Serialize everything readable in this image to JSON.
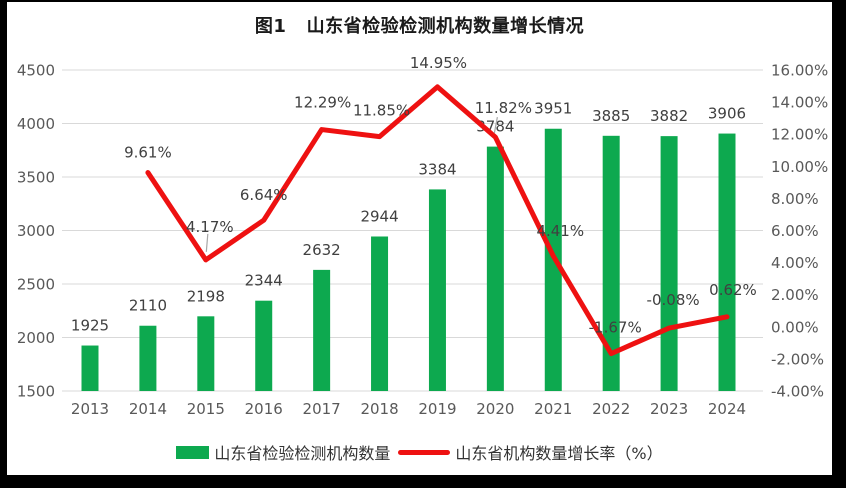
{
  "title": "图1   山东省检验检测机构数量增长情况",
  "chart_data": {
    "type": "bar",
    "combo": "bar+line",
    "title": "图1   山东省检验检测机构数量增长情况",
    "categories": [
      "2013",
      "2014",
      "2015",
      "2016",
      "2017",
      "2018",
      "2019",
      "2020",
      "2021",
      "2022",
      "2023",
      "2024"
    ],
    "series": [
      {
        "name": "山东省检验检测机构数量",
        "type": "bar",
        "axis": "left",
        "color": "#0DA94F",
        "values": [
          1925,
          2110,
          2198,
          2344,
          2632,
          2944,
          3384,
          3784,
          3951,
          3885,
          3882,
          3906
        ],
        "labels": [
          "1925",
          "2110",
          "2198",
          "2344",
          "2632",
          "2944",
          "3384",
          "3784",
          "3951",
          "3885",
          "3882",
          "3906"
        ]
      },
      {
        "name": "山东省机构数量增长率（%）",
        "type": "line",
        "axis": "right",
        "color": "#EE1111",
        "values": [
          null,
          9.61,
          4.17,
          6.64,
          12.29,
          11.85,
          14.95,
          11.82,
          4.41,
          -1.67,
          -0.08,
          0.62
        ],
        "labels": [
          "",
          "9.61%",
          "4.17%",
          "6.64%",
          "12.29%",
          "11.85%",
          "14.95%",
          "11.82%",
          "4.41%",
          "-1.67%",
          "-0.08%",
          "0.62%"
        ],
        "label_offsets": [
          null,
          [
            0,
            -15
          ],
          [
            4,
            -28
          ],
          [
            0,
            -20
          ],
          [
            1,
            -22
          ],
          [
            2,
            -21
          ],
          [
            1,
            -19
          ],
          [
            8,
            -24
          ],
          [
            7,
            -20
          ],
          [
            4,
            -21
          ],
          [
            4,
            -23
          ],
          [
            6,
            -22
          ]
        ],
        "leader_lines": {
          "2": true,
          "7": true
        }
      }
    ],
    "left_axis": {
      "min": 1500,
      "max": 4500,
      "step": 500,
      "ticks": [
        "4500",
        "4000",
        "3500",
        "3000",
        "2500",
        "2000",
        "1500"
      ]
    },
    "right_axis": {
      "min": -4,
      "max": 16,
      "step": 2,
      "ticks": [
        "16.00%",
        "14.00%",
        "12.00%",
        "10.00%",
        "8.00%",
        "6.00%",
        "4.00%",
        "2.00%",
        "0.00%",
        "-2.00%",
        "-4.00%"
      ]
    },
    "grid": true,
    "gridline_color": "#D9D9D9",
    "legend_position": "bottom"
  },
  "legend": {
    "items": [
      {
        "label": "山东省检验检测机构数量",
        "swatch": "bar",
        "color": "#0DA94F"
      },
      {
        "label": "山东省机构数量增长率（%）",
        "swatch": "line",
        "color": "#EE1111"
      }
    ]
  }
}
